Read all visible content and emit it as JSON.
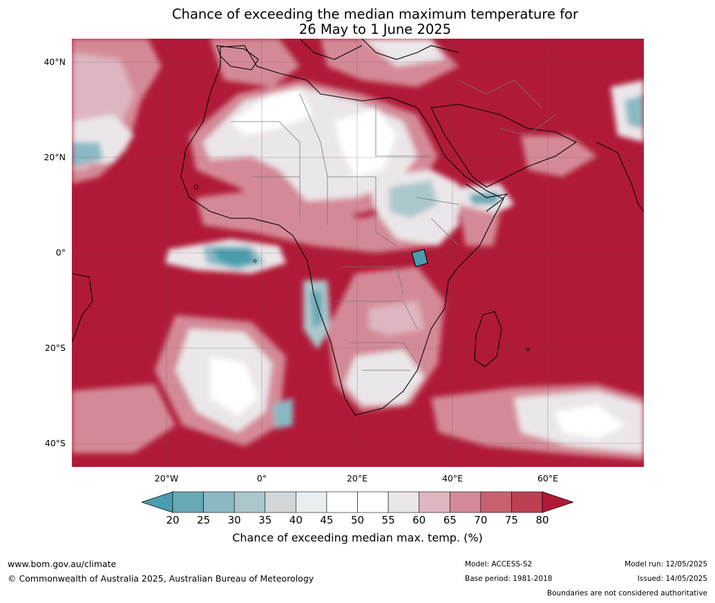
{
  "title_line1": "Chance of exceeding the median maximum temperature for",
  "title_line2": "26 May to 1 June 2025",
  "lat_labels": [
    "40°N",
    "20°N",
    "0°",
    "20°S",
    "40°S"
  ],
  "lon_labels": [
    "20°W",
    "0°",
    "20°E",
    "40°E",
    "60°E"
  ],
  "colorbar": {
    "ticks": [
      "20",
      "25",
      "30",
      "35",
      "40",
      "45",
      "50",
      "55",
      "60",
      "65",
      "70",
      "75",
      "80"
    ],
    "colors": [
      "#4a9dad",
      "#66a8b5",
      "#8ab9c4",
      "#abc7cc",
      "#d2d6d9",
      "#e9eef1",
      "#ffffff",
      "#ffffff",
      "#ebe6e9",
      "#deb6bf",
      "#d48a96",
      "#c8606f",
      "#bd3f52",
      "#b01a38"
    ],
    "label": "Chance of exceeding median max. temp. (%)"
  },
  "footer": {
    "website": "www.bom.gov.au/climate",
    "copyright": "© Commonwealth of Australia 2025, Australian Bureau of Meteorology",
    "model": "Model: ACCESS-S2",
    "base_period": "Base period: 1981-2018",
    "model_run": "Model run: 12/05/2025",
    "issued": "Issued: 14/05/2025",
    "disclaimer": "Boundaries are not considered authoritative"
  }
}
